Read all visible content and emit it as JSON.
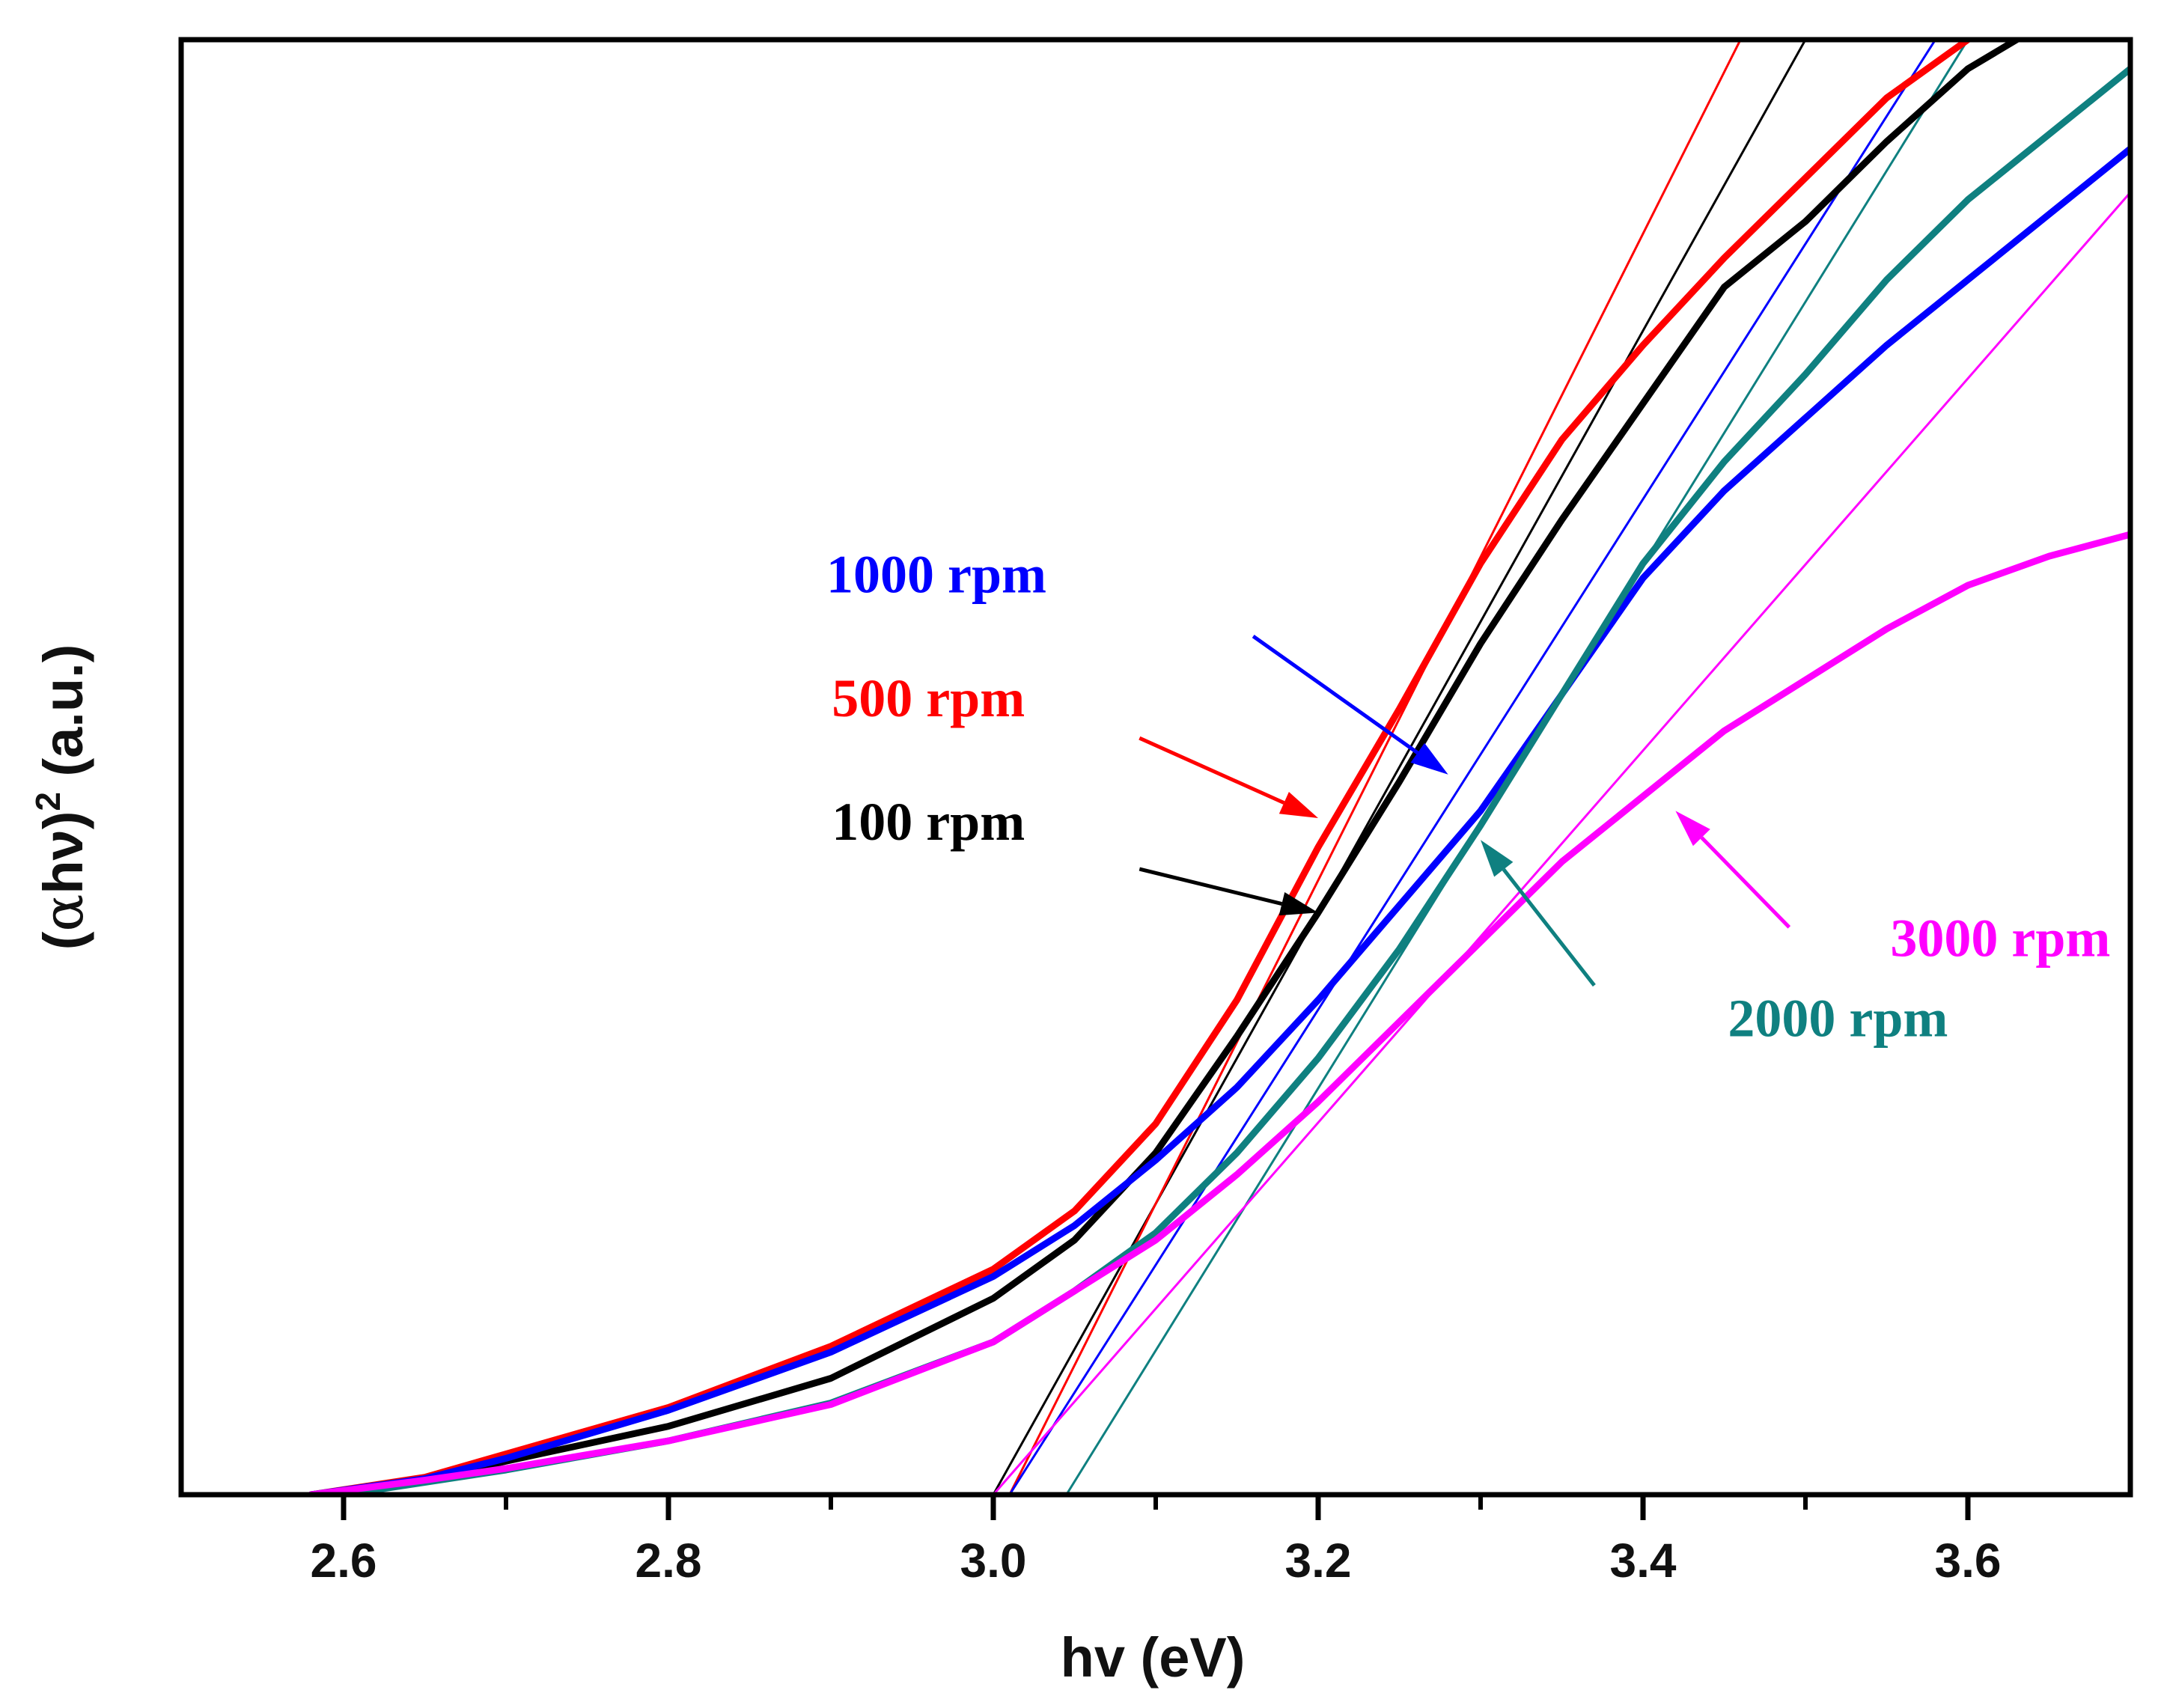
{
  "chart_data": {
    "type": "line",
    "title": "",
    "xlabel": "hv (eV)",
    "ylabel_parts": {
      "open": "(",
      "alpha": "α",
      "hv": "hν",
      "close": ")",
      "sup": "2",
      "unit": " (a.u.)"
    },
    "xlim": [
      2.5,
      3.7
    ],
    "ylim": [
      0,
      100
    ],
    "xticks": [
      2.6,
      2.8,
      3.0,
      3.2,
      3.4,
      3.6
    ],
    "xtick_labels": [
      "2.6",
      "2.8",
      "3.0",
      "3.2",
      "3.4",
      "3.6"
    ],
    "y_tick_labels_shown": false,
    "grid": false,
    "series": [
      {
        "name": "100 rpm",
        "label": "100 rpm",
        "color": "#000000",
        "x": [
          2.58,
          2.65,
          2.7,
          2.8,
          2.9,
          3.0,
          3.05,
          3.1,
          3.15,
          3.2,
          3.25,
          3.3,
          3.35,
          3.4,
          3.45,
          3.5,
          3.55,
          3.6,
          3.63
        ],
        "y": [
          0,
          1.0,
          2.3,
          4.7,
          8.0,
          13.5,
          17.5,
          23.5,
          31.5,
          40.0,
          49.0,
          58.5,
          67.0,
          75.0,
          83.0,
          87.5,
          93.0,
          98.0,
          100
        ]
      },
      {
        "name": "500 rpm",
        "label": "500 rpm",
        "color": "#ff0000",
        "x": [
          2.58,
          2.65,
          2.7,
          2.8,
          2.9,
          3.0,
          3.05,
          3.1,
          3.15,
          3.2,
          3.25,
          3.3,
          3.35,
          3.4,
          3.45,
          3.5,
          3.55,
          3.6
        ],
        "y": [
          0,
          1.2,
          2.8,
          6.0,
          10.2,
          15.5,
          19.5,
          25.5,
          34.0,
          44.5,
          54.0,
          64.0,
          72.5,
          79.0,
          85.0,
          90.5,
          96.0,
          100
        ]
      },
      {
        "name": "1000 rpm",
        "label": "1000 rpm",
        "color": "#0000ff",
        "x": [
          2.58,
          2.65,
          2.7,
          2.8,
          2.9,
          3.0,
          3.05,
          3.1,
          3.15,
          3.2,
          3.25,
          3.3,
          3.35,
          3.4,
          3.45,
          3.5,
          3.55,
          3.6,
          3.65,
          3.7
        ],
        "y": [
          0,
          1.1,
          2.5,
          5.8,
          9.8,
          15.0,
          18.5,
          23.0,
          28.0,
          34.0,
          40.5,
          47.0,
          55.0,
          63.0,
          69.0,
          74.0,
          79.0,
          83.5,
          88.0,
          92.5
        ]
      },
      {
        "name": "2000 rpm",
        "label": "2000 rpm",
        "color": "#0f8080",
        "x": [
          2.6,
          2.7,
          2.8,
          2.9,
          3.0,
          3.05,
          3.1,
          3.15,
          3.2,
          3.25,
          3.3,
          3.35,
          3.4,
          3.45,
          3.5,
          3.55,
          3.6,
          3.65,
          3.7
        ],
        "y": [
          0,
          1.7,
          3.7,
          6.3,
          10.5,
          14.0,
          18.0,
          23.5,
          30.0,
          37.5,
          46.0,
          55.0,
          64.0,
          71.0,
          77.0,
          83.5,
          89.0,
          93.5,
          98.0
        ]
      },
      {
        "name": "3000 rpm",
        "label": "3000 rpm",
        "color": "#ff00ff",
        "x": [
          2.58,
          2.65,
          2.7,
          2.8,
          2.9,
          3.0,
          3.05,
          3.1,
          3.15,
          3.2,
          3.25,
          3.3,
          3.35,
          3.4,
          3.45,
          3.5,
          3.55,
          3.6,
          3.65,
          3.7
        ],
        "y": [
          0,
          1.0,
          1.8,
          3.7,
          6.2,
          10.5,
          14.0,
          17.5,
          22.0,
          27.0,
          32.5,
          38.0,
          43.5,
          48.0,
          52.5,
          56.0,
          59.5,
          62.5,
          64.5,
          66.0
        ]
      }
    ],
    "tangent_lines": [
      {
        "name": "100 rpm fit",
        "color": "#000000",
        "x": [
          3.0,
          3.5
        ],
        "y": [
          0,
          100
        ]
      },
      {
        "name": "500 rpm fit",
        "color": "#ff0000",
        "x": [
          3.01,
          3.46
        ],
        "y": [
          0,
          100
        ]
      },
      {
        "name": "1000 rpm fit",
        "color": "#0000ff",
        "x": [
          3.01,
          3.58
        ],
        "y": [
          0,
          100
        ]
      },
      {
        "name": "2000 rpm fit",
        "color": "#0f8080",
        "x": [
          3.045,
          3.6
        ],
        "y": [
          0,
          100
        ]
      },
      {
        "name": "3000 rpm fit",
        "color": "#ff00ff",
        "x": [
          3.0,
          3.7
        ],
        "y": [
          0,
          89.5
        ]
      }
    ],
    "annotations": [
      {
        "text": "1000 rpm",
        "color": "#0000ff",
        "text_at": [
          2.965,
          62.0
        ],
        "arrow_from": [
          3.16,
          59.0
        ],
        "arrow_to": [
          3.28,
          49.5
        ]
      },
      {
        "text": "500 rpm",
        "color": "#ff0000",
        "text_at": [
          2.96,
          53.5
        ],
        "arrow_from": [
          3.09,
          52.0
        ],
        "arrow_to": [
          3.2,
          46.5
        ]
      },
      {
        "text": "100 rpm",
        "color": "#000000",
        "text_at": [
          2.96,
          45.0
        ],
        "arrow_from": [
          3.09,
          43.0
        ],
        "arrow_to": [
          3.2,
          40.0
        ]
      },
      {
        "text": "2000 rpm",
        "color": "#0f8080",
        "text_at": [
          3.52,
          31.5
        ],
        "arrow_from": [
          3.37,
          35.0
        ],
        "arrow_to": [
          3.3,
          45.0
        ]
      },
      {
        "text": "3000 rpm",
        "color": "#ff00ff",
        "text_at": [
          3.62,
          37.0
        ],
        "arrow_from": [
          3.49,
          39.0
        ],
        "arrow_to": [
          3.42,
          47.0
        ]
      }
    ]
  }
}
